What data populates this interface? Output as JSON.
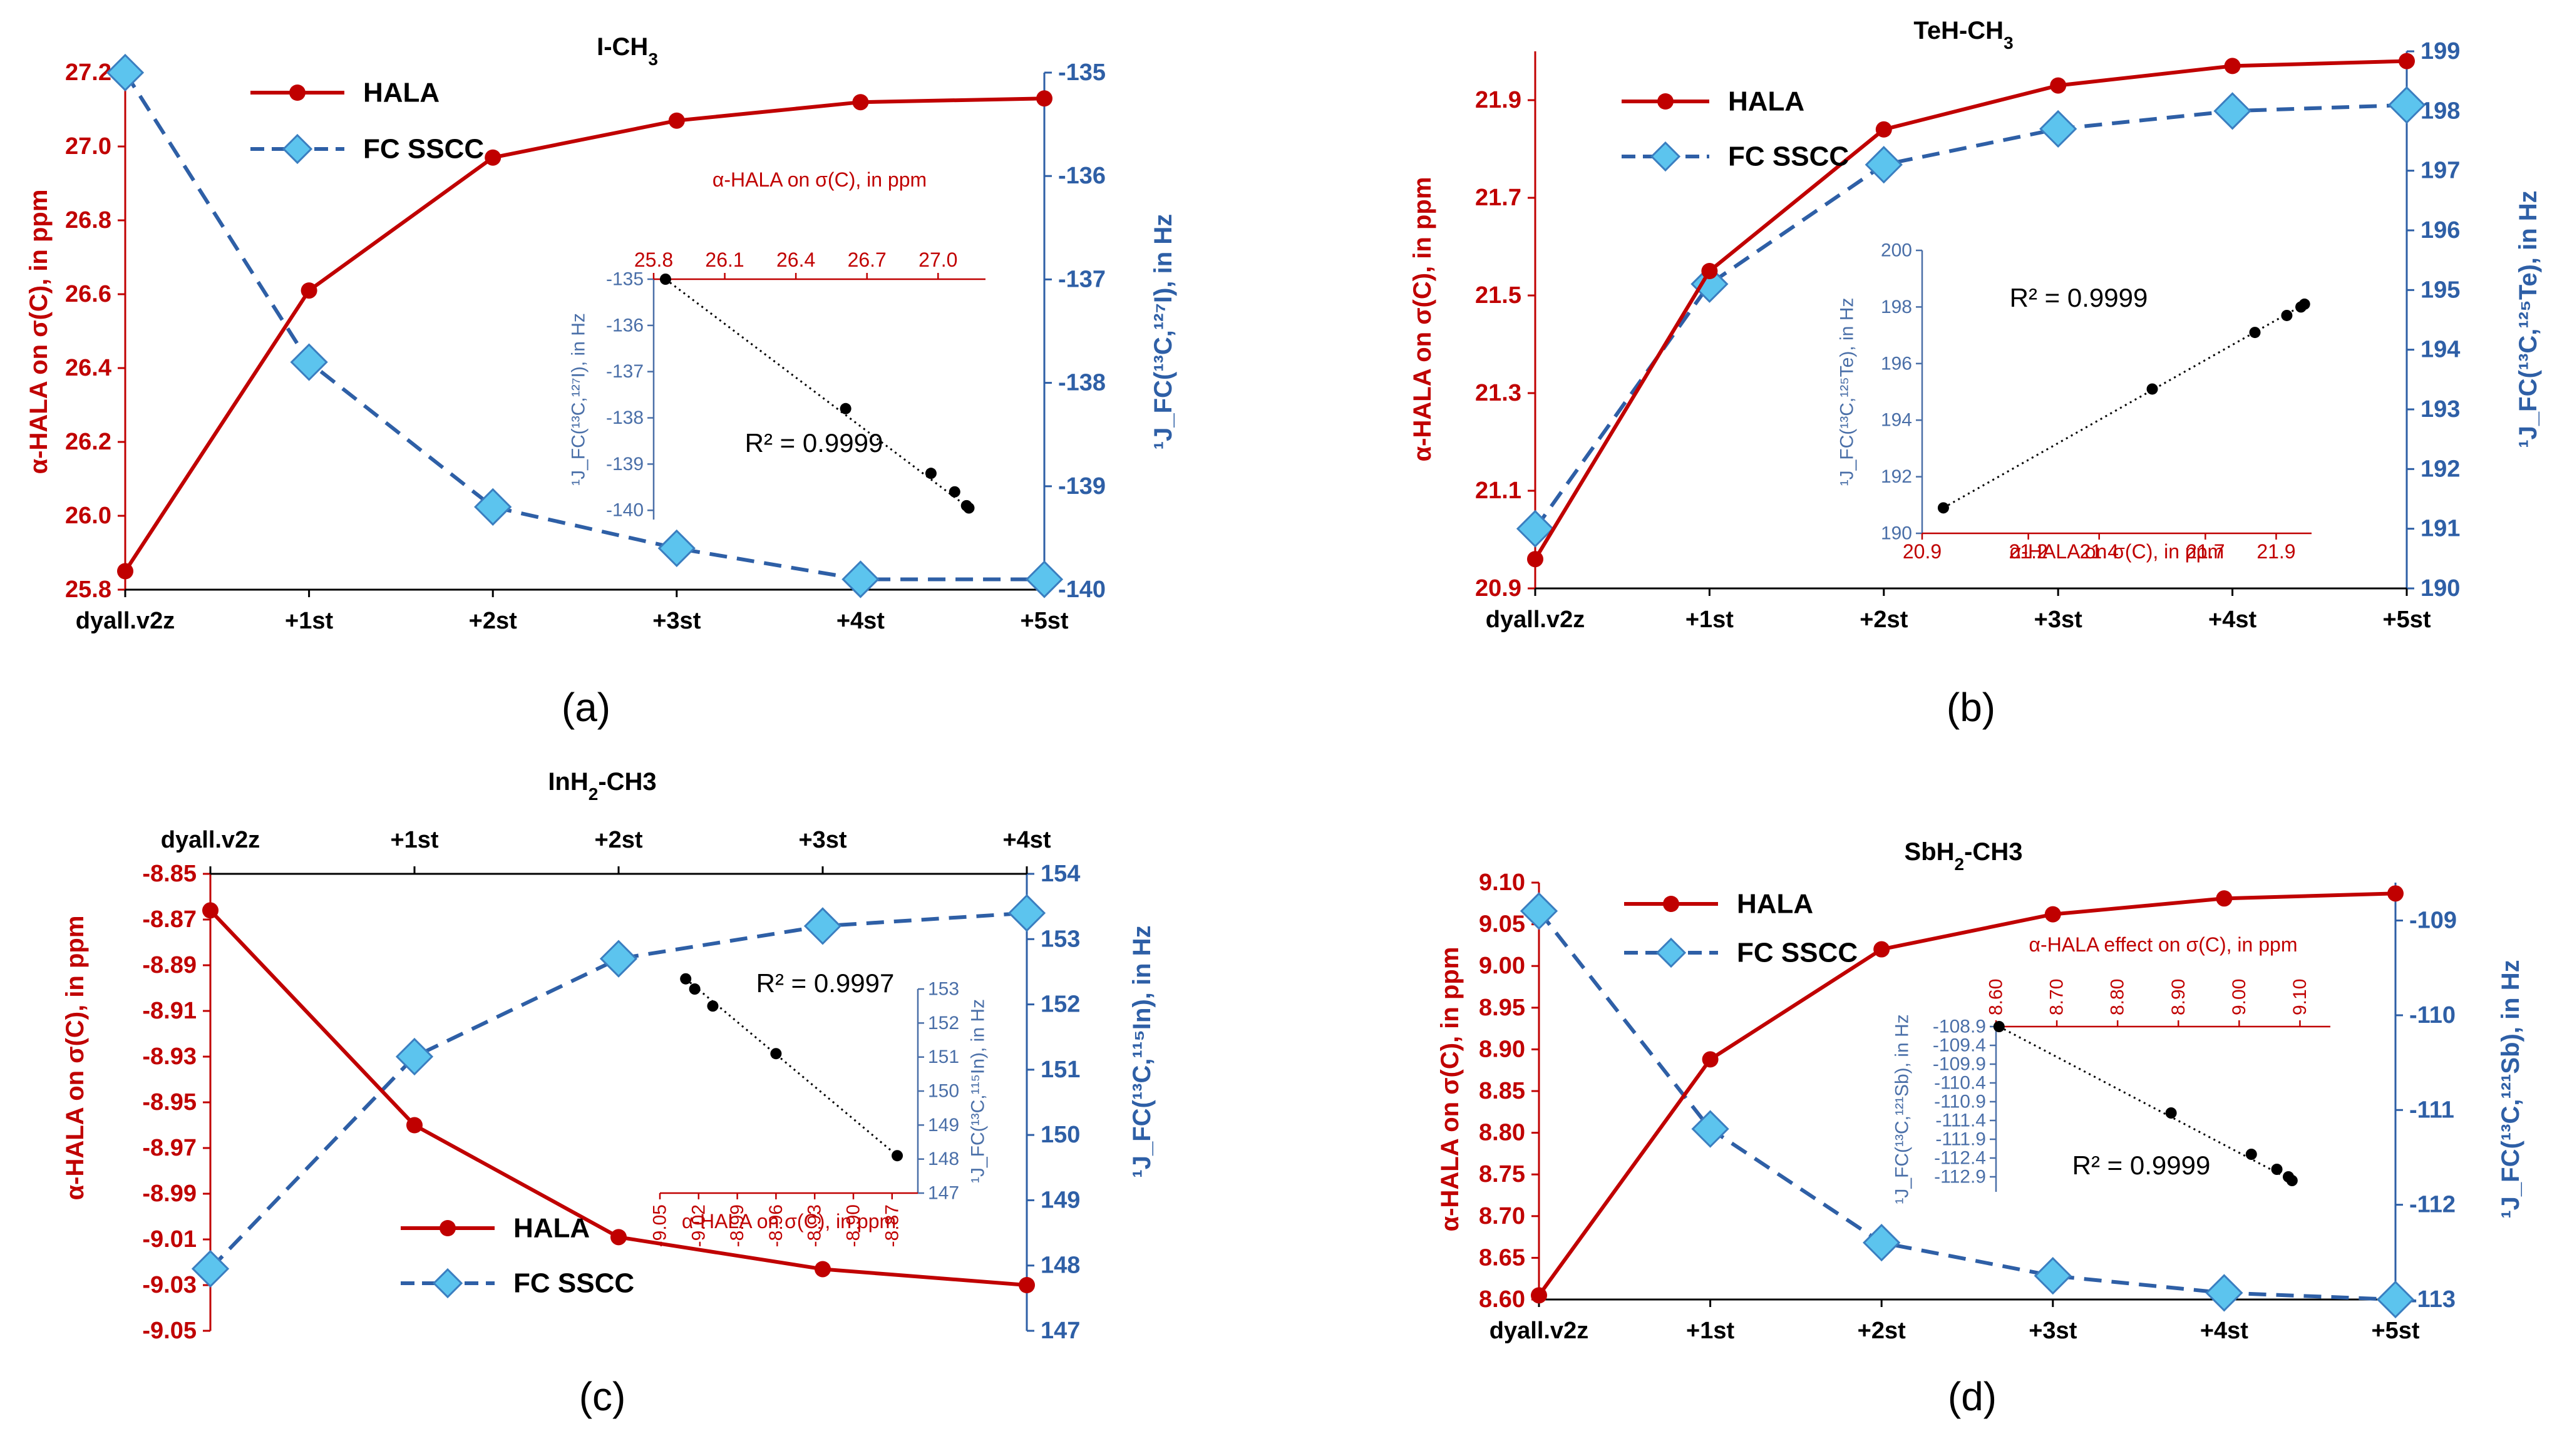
{
  "colors": {
    "hala": "#C00000",
    "fc_line": "#2E5FA6",
    "fc_marker_fill": "#5CC4EE",
    "fc_marker_stroke": "#3A7EC0",
    "axis_left": "#C00000",
    "axis_right": "#2E5FA6",
    "inset_red": "#C00000",
    "inset_blue": "#4A6FA8",
    "black": "#000000"
  },
  "chart_data": [
    {
      "id": "a",
      "type": "line",
      "panel_label": "(a)",
      "title": {
        "base": "I-CH",
        "sub": "3",
        "rest": ""
      },
      "categories": [
        "dyall.v2z",
        "+1st",
        "+2st",
        "+3st",
        "+4st",
        "+5st"
      ],
      "series": [
        {
          "name": "HALA",
          "axis": "left",
          "values": [
            25.85,
            26.61,
            26.97,
            27.07,
            27.12,
            27.13
          ]
        },
        {
          "name": "FC SSCC",
          "axis": "right",
          "values": [
            -135.0,
            -137.8,
            -139.2,
            -139.6,
            -139.9,
            -139.9
          ]
        }
      ],
      "ylabel_left": "α-HALA on σ(C), in ppm",
      "ylabel_right": "¹J_FC(¹³C,¹²⁷I), in Hz",
      "ylim_left": [
        25.8,
        27.2
      ],
      "yticks_left": [
        "25.8",
        "26.0",
        "26.2",
        "26.4",
        "26.6",
        "26.8",
        "27.0",
        "27.2"
      ],
      "ylim_right": [
        -140,
        -135
      ],
      "yticks_right": [
        "-140",
        "-139",
        "-138",
        "-137",
        "-136",
        "-135"
      ],
      "legend": {
        "entries": [
          "HALA",
          "FC SSCC"
        ],
        "position": "top-left"
      },
      "inset": {
        "type": "scatter",
        "xlabel": "α-HALA on σ(C), in ppm",
        "xaxis_position": "top",
        "xlim": [
          25.8,
          27.2
        ],
        "xticks": [
          "25.8",
          "26.1",
          "26.4",
          "26.7",
          "27.0"
        ],
        "ylabel": "¹J_FC(¹³C,¹²⁷I), in Hz",
        "ylim": [
          -140.2,
          -135
        ],
        "yticks": [
          "-135",
          "-136",
          "-137",
          "-138",
          "-139",
          "-140"
        ],
        "points": [
          [
            25.85,
            -135.0
          ],
          [
            26.61,
            -137.8
          ],
          [
            26.97,
            -139.2
          ],
          [
            27.07,
            -139.6
          ],
          [
            27.12,
            -139.9
          ],
          [
            27.13,
            -139.95
          ]
        ],
        "r2": "R² = 0.9999"
      }
    },
    {
      "id": "b",
      "type": "line",
      "panel_label": "(b)",
      "title": {
        "base": "TeH-CH",
        "sub": "3",
        "rest": ""
      },
      "categories": [
        "dyall.v2z",
        "+1st",
        "+2st",
        "+3st",
        "+4st",
        "+5st"
      ],
      "series": [
        {
          "name": "HALA",
          "axis": "left",
          "values": [
            20.96,
            21.55,
            21.84,
            21.93,
            21.97,
            21.98
          ]
        },
        {
          "name": "FC SSCC",
          "axis": "right",
          "values": [
            191.0,
            195.1,
            197.1,
            197.7,
            198.0,
            198.1
          ]
        }
      ],
      "ylabel_left": "α-HALA on σ(C), in ppm",
      "ylabel_right": "¹J_FC(¹³C,¹²⁵Te), in Hz",
      "ylim_left": [
        20.9,
        22.0
      ],
      "yticks_left": [
        "20.9",
        "21.1",
        "21.3",
        "21.5",
        "21.7",
        "21.9"
      ],
      "ylim_right": [
        190,
        199
      ],
      "yticks_right": [
        "190",
        "191",
        "192",
        "193",
        "194",
        "195",
        "196",
        "197",
        "198",
        "199"
      ],
      "legend": {
        "entries": [
          "HALA",
          "FC SSCC"
        ],
        "position": "top-left"
      },
      "inset": {
        "type": "scatter",
        "xlabel": "α-HALA on σ(C), in ppm",
        "xaxis_position": "bottom",
        "xlim": [
          20.9,
          22.0
        ],
        "xticks": [
          "20.9",
          "21.2",
          "21.4",
          "21.7",
          "21.9"
        ],
        "ylabel": "¹J_FC(¹³C,¹²⁵Te), in Hz",
        "ylim": [
          190,
          200
        ],
        "yticks": [
          "190",
          "192",
          "194",
          "196",
          "198",
          "200"
        ],
        "points": [
          [
            20.96,
            190.9
          ],
          [
            21.55,
            195.1
          ],
          [
            21.84,
            197.1
          ],
          [
            21.93,
            197.7
          ],
          [
            21.97,
            198.0
          ],
          [
            21.98,
            198.1
          ]
        ],
        "r2": "R² = 0.9999"
      }
    },
    {
      "id": "c",
      "type": "line",
      "panel_label": "(c)",
      "title": {
        "base": "InH",
        "sub": "2",
        "rest": "-CH3"
      },
      "categories": [
        "dyall.v2z",
        "+1st",
        "+2st",
        "+3st",
        "+4st"
      ],
      "category_axis_position": "top",
      "series": [
        {
          "name": "HALA",
          "axis": "left",
          "values": [
            -8.866,
            -8.96,
            -9.009,
            -9.023,
            -9.03
          ]
        },
        {
          "name": "FC SSCC",
          "axis": "right",
          "values": [
            147.95,
            151.2,
            152.7,
            153.2,
            153.4
          ]
        }
      ],
      "ylabel_left": "α-HALA on σ(C), in ppm",
      "ylabel_right": "¹J_FC(¹³C,¹¹⁵In), in Hz",
      "ylim_left": [
        -9.05,
        -8.85
      ],
      "yticks_left": [
        "-8.85",
        "-8.87",
        "-8.89",
        "-8.91",
        "-8.93",
        "-8.95",
        "-8.97",
        "-8.99",
        "-9.01",
        "-9.03",
        "-9.05"
      ],
      "ylim_right": [
        147,
        154
      ],
      "yticks_right": [
        "147",
        "148",
        "149",
        "150",
        "151",
        "152",
        "153",
        "154"
      ],
      "legend": {
        "entries": [
          "HALA",
          "FC SSCC"
        ],
        "position": "bottom-left"
      },
      "inset": {
        "type": "scatter",
        "xlabel": "α-HALA on σ(C), in ppm",
        "xaxis_position": "bottom",
        "xlim": [
          -9.05,
          -8.85
        ],
        "xticks": [
          "-9.05",
          "-9.02",
          "-8.99",
          "-8.96",
          "-8.93",
          "-8.90",
          "-8.87"
        ],
        "ylabel": "¹J_FC(¹³C,¹¹⁵In), in Hz",
        "ylim": [
          147,
          153
        ],
        "yticks": [
          "147",
          "148",
          "149",
          "150",
          "151",
          "152",
          "153"
        ],
        "points": [
          [
            -9.03,
            153.3
          ],
          [
            -9.023,
            153.0
          ],
          [
            -9.009,
            152.5
          ],
          [
            -8.96,
            151.1
          ],
          [
            -8.866,
            148.1
          ]
        ],
        "r2": "R² = 0.9997"
      }
    },
    {
      "id": "d",
      "type": "line",
      "panel_label": "(d)",
      "title": {
        "base": "SbH",
        "sub": "2",
        "rest": "-CH3"
      },
      "categories": [
        "dyall.v2z",
        "+1st",
        "+2st",
        "+3st",
        "+4st",
        "+5st"
      ],
      "series": [
        {
          "name": "HALA",
          "axis": "left",
          "values": [
            8.605,
            8.888,
            9.02,
            9.062,
            9.081,
            9.087
          ]
        },
        {
          "name": "FC SSCC",
          "axis": "right",
          "values": [
            -108.9,
            -111.2,
            -112.4,
            -112.75,
            -112.93,
            -113.0
          ]
        }
      ],
      "ylabel_left": "α-HALA on σ(C), in ppm",
      "ylabel_right": "¹J_FC(¹³C,¹²¹Sb), in Hz",
      "ylim_left": [
        8.6,
        9.1
      ],
      "yticks_left": [
        "8.60",
        "8.65",
        "8.70",
        "8.75",
        "8.80",
        "8.85",
        "8.90",
        "8.95",
        "9.00",
        "9.05",
        "9.10"
      ],
      "ylim_right": [
        -113,
        -108.6
      ],
      "yticks_right": [
        "-113",
        "-112",
        "-111",
        "-110",
        "-109"
      ],
      "legend": {
        "entries": [
          "HALA",
          "FC SSCC"
        ],
        "position": "top-left"
      },
      "inset": {
        "type": "scatter",
        "xlabel": "α-HALA effect on σ(C), in ppm",
        "xaxis_position": "top",
        "xlim": [
          8.6,
          9.15
        ],
        "xticks": [
          "8.60",
          "8.70",
          "8.80",
          "8.90",
          "9.00",
          "9.10"
        ],
        "ylabel": "¹J_FC(¹³C,¹²¹Sb), in Hz",
        "ylim": [
          -113.3,
          -108.9
        ],
        "yticks": [
          "-108.9",
          "-109.4",
          "-109.9",
          "-110.4",
          "-110.9",
          "-111.4",
          "-111.9",
          "-112.4",
          "-112.9"
        ],
        "points": [
          [
            8.605,
            -108.9
          ],
          [
            8.888,
            -111.2
          ],
          [
            9.02,
            -112.3
          ],
          [
            9.062,
            -112.7
          ],
          [
            9.081,
            -112.9
          ],
          [
            9.087,
            -113.0
          ]
        ],
        "r2": "R² = 0.9999"
      }
    }
  ]
}
